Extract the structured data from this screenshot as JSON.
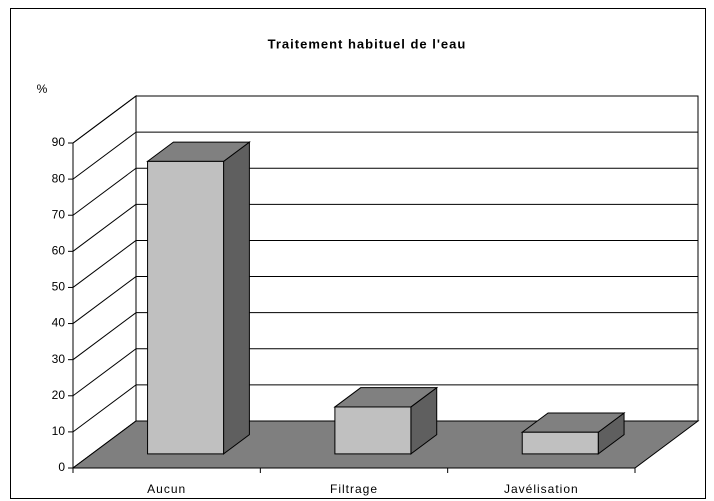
{
  "chart_data": {
    "type": "bar3d",
    "title": "Traitement habituel de l'eau",
    "y_label": "%",
    "categories": [
      "Aucun",
      "Filtrage",
      "Javélisation"
    ],
    "values": [
      81,
      13,
      6
    ],
    "color": "#c0c0c0",
    "top_color": "#808080",
    "side_color": "#5f5f5f",
    "floor_color": "#7f7f7f",
    "ylim": [
      0,
      90
    ],
    "yticks": [
      0,
      10,
      20,
      30,
      40,
      50,
      60,
      70,
      80,
      90
    ],
    "grid": true
  }
}
